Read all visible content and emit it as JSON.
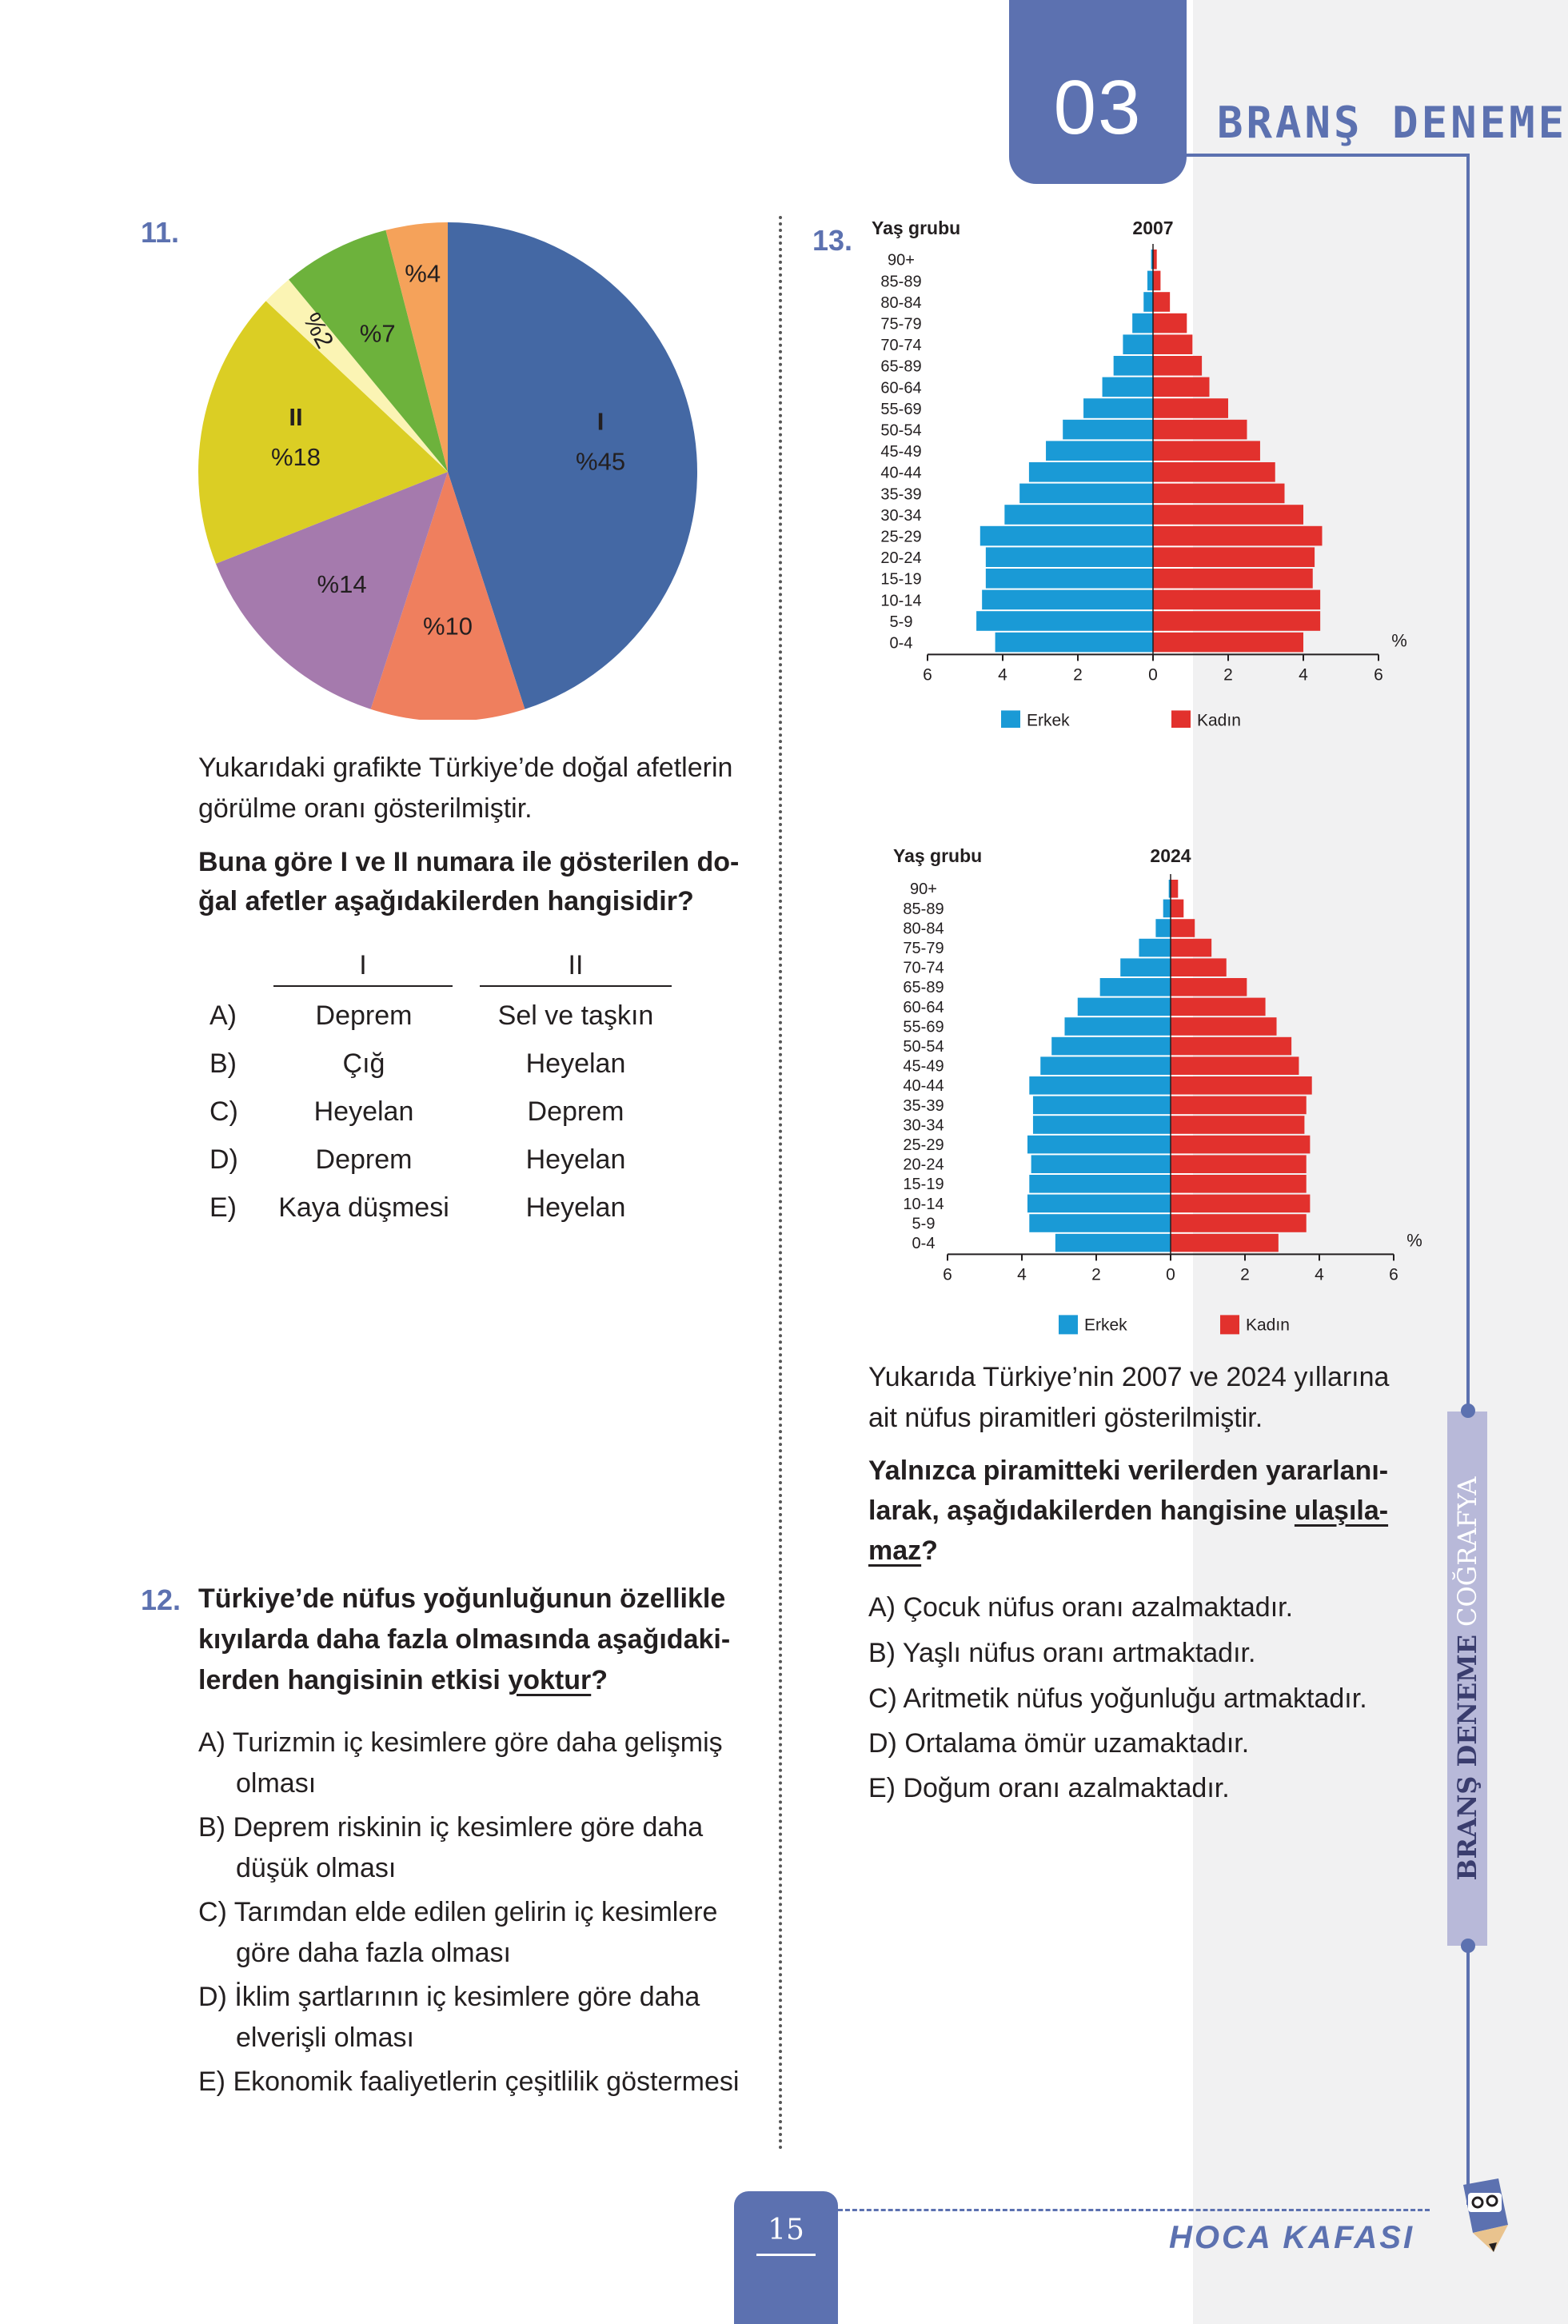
{
  "header": {
    "number": "03",
    "title": "BRANŞ DENEME"
  },
  "side_tab": {
    "part1": "BRANŞ DENEME",
    "part2": "COĞRAFYA"
  },
  "footer": {
    "page": "15",
    "brand": "HOCA KAFASI"
  },
  "q11": {
    "number": "11.",
    "intro": "Yukarıdaki grafikte Türkiye’de doğal afetlerin görülme oranı gösterilmiştir.",
    "question_l1": "Buna göre I ve II numara ile gösterilen do-",
    "question_l2": "ğal afetler aşağıdakilerden hangisidir?",
    "col1": "I",
    "col2": "II",
    "options": [
      {
        "letter": "A)",
        "i": "Deprem",
        "ii": "Sel ve taşkın"
      },
      {
        "letter": "B)",
        "i": "Çığ",
        "ii": "Heyelan"
      },
      {
        "letter": "C)",
        "i": "Heyelan",
        "ii": "Deprem"
      },
      {
        "letter": "D)",
        "i": "Deprem",
        "ii": "Heyelan"
      },
      {
        "letter": "E)",
        "i": "Kaya düşmesi",
        "ii": "Heyelan"
      }
    ]
  },
  "q12": {
    "number": "12.",
    "q_l1": "Türkiye’de nüfus yoğunluğunun özellikle",
    "q_l2": "kıyılarda daha fazla olmasında aşağıdaki-",
    "q_l3a": "lerden hangisinin etkisi ",
    "q_l3b": "yoktur",
    "q_l3c": "?",
    "options": [
      {
        "letter": "A)",
        "l1": "Turizmin iç kesimlere göre daha gelişmiş",
        "l2": "olması"
      },
      {
        "letter": "B)",
        "l1": "Deprem riskinin iç kesimlere göre daha",
        "l2": "düşük olması"
      },
      {
        "letter": "C)",
        "l1": "Tarımdan elde edilen gelirin iç kesimlere",
        "l2": "göre daha fazla olması"
      },
      {
        "letter": "D)",
        "l1": "İklim şartlarının iç kesimlere göre daha",
        "l2": "elverişli olması"
      },
      {
        "letter": "E)",
        "l1": "Ekonomik faaliyetlerin çeşitlilik göstermesi",
        "l2": ""
      }
    ]
  },
  "q13": {
    "number": "13.",
    "intro_l1": "Yukarıda Türkiye’nin 2007 ve 2024 yıllarına",
    "intro_l2": "ait nüfus piramitleri gösterilmiştir.",
    "q_l1": "Yalnızca piramitteki verilerden yararlanı-",
    "q_l2a": "larak, aşağıdakilerden hangisine ",
    "q_l2b": "ulaşıla-",
    "q_l3a": "maz",
    "q_l3b": "?",
    "options": [
      {
        "letter": "A)",
        "text": "Çocuk nüfus oranı azalmaktadır."
      },
      {
        "letter": "B)",
        "text": "Yaşlı nüfus oranı artmaktadır."
      },
      {
        "letter": "C)",
        "text": "Aritmetik nüfus yoğunluğu artmaktadır."
      },
      {
        "letter": "D)",
        "text": "Ortalama ömür uzamaktadır."
      },
      {
        "letter": "E)",
        "text": "Doğum oranı azalmaktadır."
      }
    ]
  },
  "chart_data": [
    {
      "type": "pie",
      "slices": [
        {
          "label": "I",
          "value_label": "%45",
          "value": 45,
          "color": "#4468a4"
        },
        {
          "label": "",
          "value_label": "%10",
          "value": 10,
          "color": "#ef7f5e"
        },
        {
          "label": "",
          "value_label": "%14",
          "value": 14,
          "color": "#a57aad"
        },
        {
          "label": "II",
          "value_label": "%18",
          "value": 18,
          "color": "#dbce24"
        },
        {
          "label": "",
          "value_label": "%2",
          "value": 2,
          "color": "#fbf4b4"
        },
        {
          "label": "",
          "value_label": "%7",
          "value": 7,
          "color": "#6db23c"
        },
        {
          "label": "",
          "value_label": "%4",
          "value": 4,
          "color": "#f5a25a"
        }
      ]
    },
    {
      "type": "bar",
      "title": "2007",
      "ylabel": "Yaş grubu",
      "unit": "%",
      "categories": [
        "90+",
        "85-89",
        "80-84",
        "75-79",
        "70-74",
        "65-89",
        "60-64",
        "55-69",
        "50-54",
        "45-49",
        "40-44",
        "35-39",
        "30-34",
        "25-29",
        "20-24",
        "15-19",
        "10-14",
        "5-9",
        "0-4"
      ],
      "series": [
        {
          "name": "Erkek",
          "color": "#1a9ad6",
          "values": [
            0.05,
            0.15,
            0.25,
            0.55,
            0.8,
            1.05,
            1.35,
            1.85,
            2.4,
            2.85,
            3.3,
            3.55,
            3.95,
            4.6,
            4.45,
            4.45,
            4.55,
            4.7,
            4.2
          ]
        },
        {
          "name": "Kadın",
          "color": "#e2312d",
          "values": [
            0.1,
            0.2,
            0.45,
            0.9,
            1.05,
            1.3,
            1.5,
            2.0,
            2.5,
            2.85,
            3.25,
            3.5,
            4.0,
            4.5,
            4.3,
            4.25,
            4.45,
            4.45,
            4.0
          ]
        }
      ],
      "xticks": [
        "6",
        "4",
        "2",
        "0",
        "2",
        "4",
        "6"
      ],
      "xlim": [
        -6,
        6
      ]
    },
    {
      "type": "bar",
      "title": "2024",
      "ylabel": "Yaş grubu",
      "unit": "%",
      "categories": [
        "90+",
        "85-89",
        "80-84",
        "75-79",
        "70-74",
        "65-89",
        "60-64",
        "55-69",
        "50-54",
        "45-49",
        "40-44",
        "35-39",
        "30-34",
        "25-29",
        "20-24",
        "15-19",
        "10-14",
        "5-9",
        "0-4"
      ],
      "series": [
        {
          "name": "Erkek",
          "color": "#1a9ad6",
          "values": [
            0.05,
            0.2,
            0.4,
            0.85,
            1.35,
            1.9,
            2.5,
            2.85,
            3.2,
            3.5,
            3.8,
            3.7,
            3.7,
            3.85,
            3.75,
            3.8,
            3.85,
            3.8,
            3.1
          ]
        },
        {
          "name": "Kadın",
          "color": "#e2312d",
          "values": [
            0.2,
            0.35,
            0.65,
            1.1,
            1.5,
            2.05,
            2.55,
            2.85,
            3.25,
            3.45,
            3.8,
            3.65,
            3.6,
            3.75,
            3.65,
            3.65,
            3.75,
            3.65,
            2.9
          ]
        }
      ],
      "xticks": [
        "6",
        "4",
        "2",
        "0",
        "2",
        "4",
        "6"
      ],
      "xlim": [
        -6,
        6
      ]
    }
  ]
}
